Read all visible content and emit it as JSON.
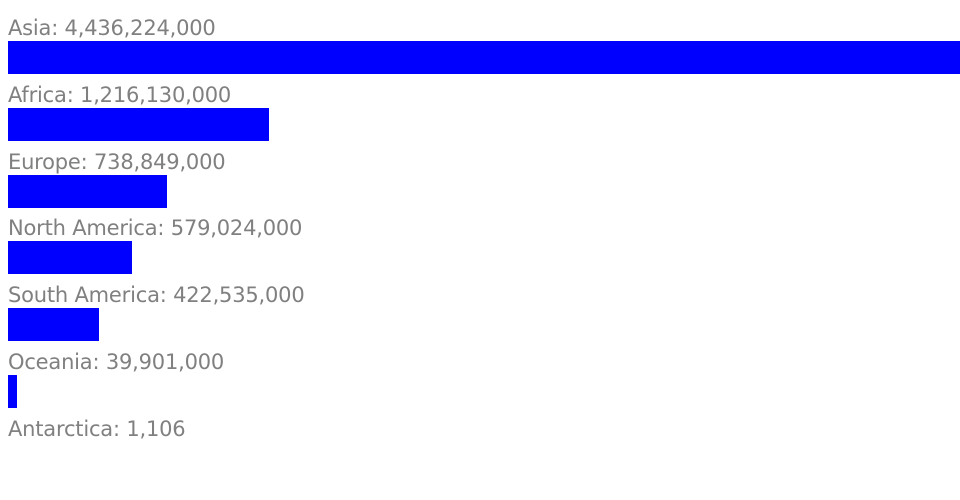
{
  "chart_data": {
    "type": "bar",
    "orientation": "horizontal",
    "categories": [
      "Asia",
      "Africa",
      "Europe",
      "North America",
      "South America",
      "Oceania",
      "Antarctica"
    ],
    "values": [
      4436224000,
      1216130000,
      738849000,
      579024000,
      422535000,
      39901000,
      1106
    ],
    "labels": [
      "Asia: 4,436,224,000",
      "Africa: 1,216,130,000",
      "Europe: 738,849,000",
      "North America: 579,024,000",
      "South America: 422,535,000",
      "Oceania: 39,901,000",
      "Antarctica: 1,106"
    ],
    "xlim": [
      0,
      4436224000
    ],
    "grid": false,
    "legend": "none",
    "bar_color": "#0000ff",
    "label_color": "#808080"
  }
}
